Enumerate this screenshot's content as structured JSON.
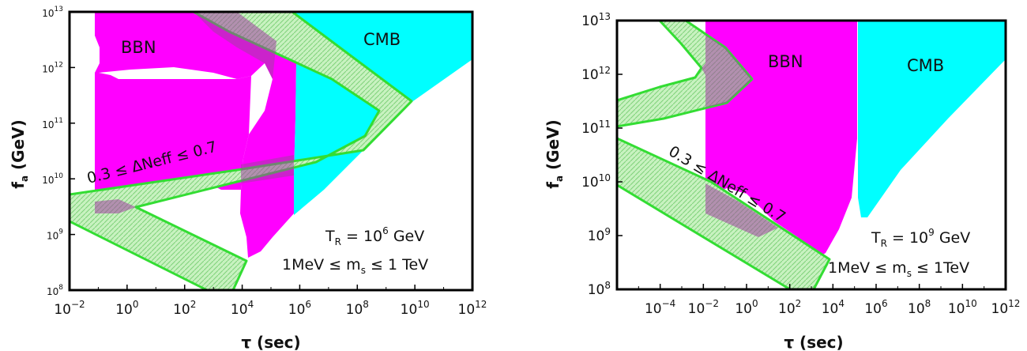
{
  "colors": {
    "bbn": "#ff00ff",
    "cmb": "#00ffff",
    "band_fill": "#b6f0b0",
    "band_stroke": "#33dd33",
    "overlap": "#a040a0"
  },
  "chart_data": [
    {
      "type": "area",
      "xscale": "log",
      "yscale": "log",
      "xlim": [
        0.01,
        1000000000000.0
      ],
      "ylim": [
        100000000.0,
        10000000000000.0
      ],
      "xticks": [
        "10^-2",
        "10^0",
        "10^2",
        "10^4",
        "10^6",
        "10^8",
        "10^10",
        "10^12"
      ],
      "yticks": [
        "10^8",
        "10^9",
        "10^10",
        "10^11",
        "10^12",
        "10^13"
      ],
      "xlabel": "τ (sec)",
      "ylabel": "f_a (GeV)",
      "regions": [
        {
          "name": "BBN",
          "label": "BBN",
          "color": "#ff00ff",
          "polygon": [
            [
              0.1,
              10000000000000.0
            ],
            [
              600000.0,
              10000000000000.0
            ],
            [
              600000.0,
              10000000000.0
            ],
            [
              600000.0,
              1300000000.0
            ],
            [
              15000.0,
              300000000.0
            ],
            [
              12000.0,
              330000000.0
            ],
            [
              12000.0,
              2000000000.0
            ],
            [
              15000.0,
              40000000000.0
            ],
            [
              20000.0,
              200000000000.0
            ],
            [
              15000.0,
              1000000000000.0
            ],
            [
              15000.0,
              1000000000000.0
            ],
            [
              10000.0,
              2000000000000.0
            ],
            [
              0.6,
              1100000000000.0
            ],
            [
              0.3,
              1100000000000.0
            ],
            [
              0.3,
              1800000000000.0
            ],
            [
              0.2,
              3000000000000.0
            ],
            [
              0.3,
              5000000000000.0
            ],
            [
              0.1,
              10000000000000.0
            ],
            [
              0.1,
              2200000000.0
            ],
            [
              0.3,
              2200000000.0
            ]
          ]
        },
        {
          "name": "CMB",
          "label": "CMB",
          "color": "#00ffff",
          "polygon": [
            [
              600000.0,
              10000000000000.0
            ],
            [
              1000000000000.0,
              10000000000000.0
            ],
            [
              1000000000000.0,
              2500000000000.0
            ],
            [
              5000000000.0,
              200000000000.0
            ],
            [
              600000.0,
              2000000000.0
            ],
            [
              600000.0,
              1300000000.0
            ]
          ]
        }
      ],
      "band": {
        "label": "0.3 ≤ ΔNeff ≤ 0.7",
        "outline": [
          [
            100,
            10000000000000.0
          ],
          [
            1000000.0,
            10000000000000.0
          ],
          [
            10000000000.0,
            220000000000.0
          ],
          [
            200000000.0,
            70000000000.0
          ],
          [
            0.01,
            4600000000.0
          ],
          [
            0.01,
            1600000000.0
          ],
          [
            500,
            100000000.0
          ],
          [
            3000,
            100000000.0
          ],
          [
            20000.0,
            290000000.0
          ],
          [
            2,
            2900000000.0
          ],
          [
            5000000.0,
            60000000000.0
          ],
          [
            1000000000.0,
            120000000000.0
          ],
          [
            20000000.0,
            550000000000.0
          ],
          [
            2500,
            10000000000000.0
          ]
        ]
      },
      "annotations": [
        "T_R = 10^6 GeV",
        "1MeV ≤ m_s ≤ 1 TeV"
      ]
    },
    {
      "type": "area",
      "xscale": "log",
      "yscale": "log",
      "xlim": [
        1e-06,
        1000000000000.0
      ],
      "ylim": [
        100000000.0,
        10000000000000.0
      ],
      "xticks": [
        "10^-4",
        "10^-2",
        "10^0",
        "10^2",
        "10^4",
        "10^6",
        "10^8",
        "10^10",
        "10^12"
      ],
      "yticks": [
        "10^8",
        "10^9",
        "10^10",
        "10^11",
        "10^12",
        "10^13"
      ],
      "xlabel": "τ (sec)",
      "ylabel": "f_a (GeV)",
      "regions": [
        {
          "name": "BBN",
          "label": "BBN",
          "color": "#ff00ff",
          "polygon": [
            [
              0.003,
              10000000000000.0
            ],
            [
              300000.0,
              10000000000000.0
            ],
            [
              300000.0,
              10000000000.0
            ],
            [
              300000.0,
              2200000000.0
            ],
            [
              10000.0,
              300000000.0
            ],
            [
              25000.0,
              320000000.0
            ]
          ]
        },
        {
          "name": "CMB",
          "label": "CMB",
          "color": "#00ffff",
          "polygon": [
            [
              300000.0,
              10000000000000.0
            ],
            [
              1000000000000.0,
              10000000000000.0
            ],
            [
              1000000000000.0,
              1800000000000.0
            ],
            [
              1000000.0,
              2200000000.0
            ],
            [
              300000.0,
              2200000000.0
            ]
          ]
        }
      ],
      "band": {
        "label": "0.3 ≤ ΔNeff ≤ 0.7",
        "outline": []
      },
      "annotations": [
        "T_R = 10^9 GeV",
        "1MeV ≤ m_s ≤ 1TeV"
      ]
    }
  ],
  "text": {
    "left": {
      "bbn": "BBN",
      "cmb": "CMB",
      "band": "0.3 ≤ ΔNeff ≤ 0.7",
      "tr_base": "T",
      "tr_sub": "R",
      "tr_eq": " = 10",
      "tr_sup": "6",
      "tr_unit": " GeV",
      "ms_pre": "1MeV ≤ m",
      "ms_sub": "s",
      "ms_post": " ≤ 1 TeV",
      "xlabel": "τ (sec)",
      "ylabel_f": "f",
      "ylabel_sub": "a",
      "ylabel_unit": " (GeV)"
    },
    "right": {
      "bbn": "BBN",
      "cmb": "CMB",
      "band": "0.3 ≤ ΔNeff ≤ 0.7",
      "tr_base": "T",
      "tr_sub": "R",
      "tr_eq": " = 10",
      "tr_sup": "9",
      "tr_unit": " GeV",
      "ms_pre": "1MeV ≤ m",
      "ms_sub": "s",
      "ms_post": " ≤ 1TeV",
      "xlabel": "τ (sec)",
      "ylabel_f": "f",
      "ylabel_sub": "a",
      "ylabel_unit": " (GeV)"
    }
  }
}
